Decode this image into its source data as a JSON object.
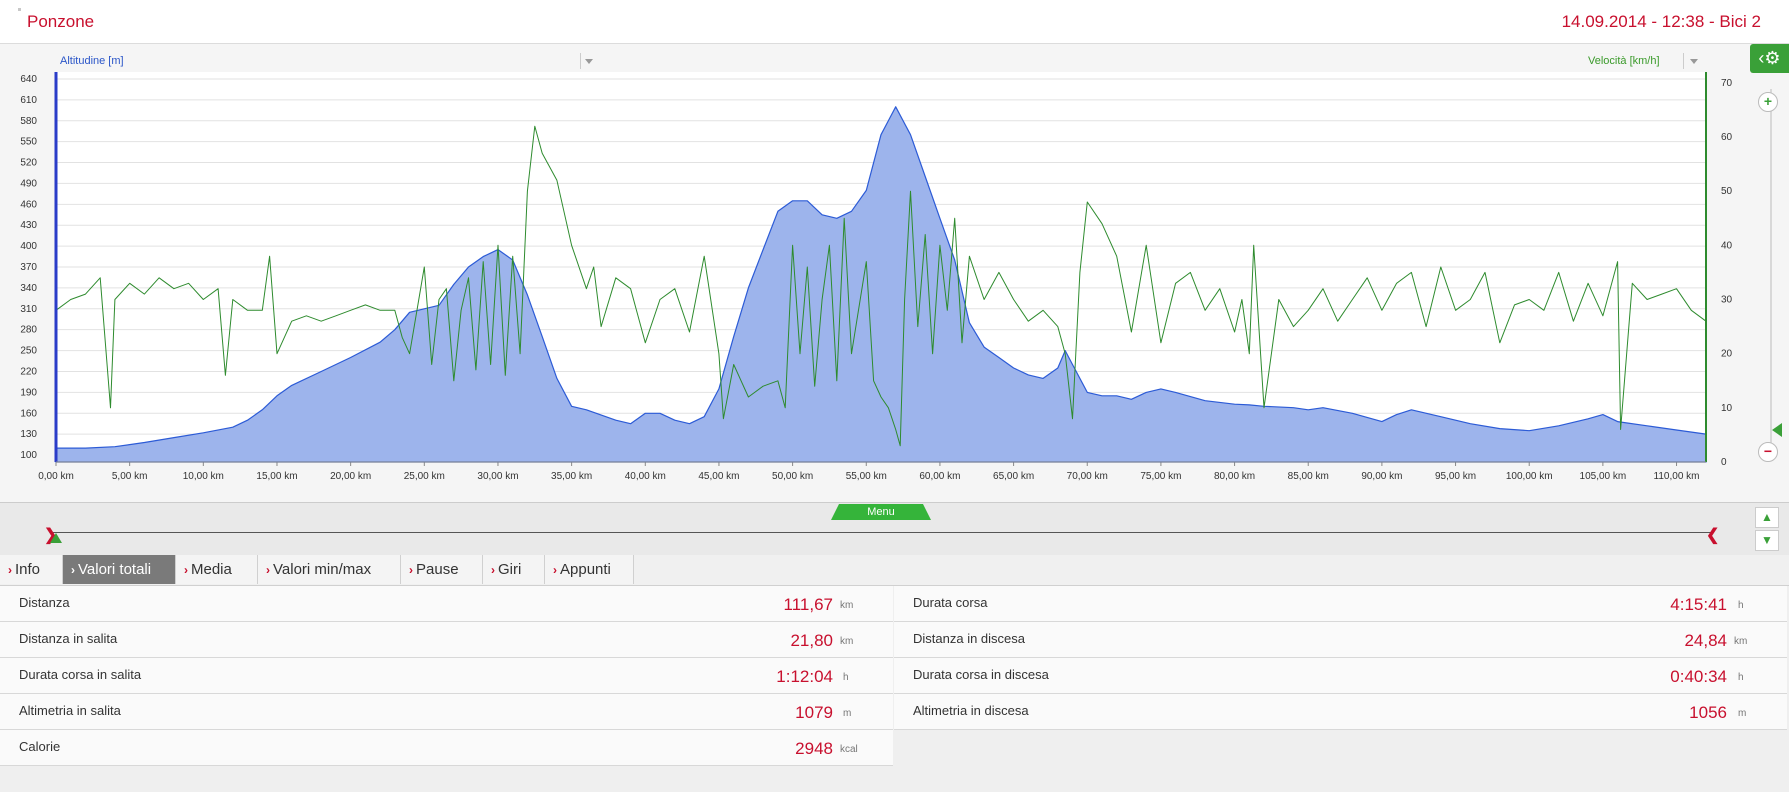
{
  "header": {
    "title": "Ponzone",
    "meta": "14.09.2014 - 12:38 - Bici 2"
  },
  "chart": {
    "left_axis_label": "Altitudine [m]",
    "right_axis_label": "Velocità [km/h]",
    "colors": {
      "altitude_fill": "#9db4ec",
      "altitude_line": "#2c5bd6",
      "speed_line": "#2e8b2e"
    }
  },
  "chart_data": {
    "type": "area",
    "xlabel": "",
    "ylabel": "Altitudine [m]",
    "y2label": "Velocità [km/h]",
    "xlim": [
      0,
      112
    ],
    "ylim": [
      90,
      650
    ],
    "y2lim": [
      0,
      72
    ],
    "x_ticks": [
      "0,00 km",
      "5,00 km",
      "10,00 km",
      "15,00 km",
      "20,00 km",
      "25,00 km",
      "30,00 km",
      "35,00 km",
      "40,00 km",
      "45,00 km",
      "50,00 km",
      "55,00 km",
      "60,00 km",
      "65,00 km",
      "70,00 km",
      "75,00 km",
      "80,00 km",
      "85,00 km",
      "90,00 km",
      "95,00 km",
      "100,00 km",
      "105,00 km",
      "110,00 km"
    ],
    "y_ticks": [
      640,
      610,
      580,
      550,
      520,
      490,
      460,
      430,
      400,
      370,
      340,
      310,
      280,
      250,
      220,
      190,
      160,
      130,
      100
    ],
    "y2_ticks": [
      70,
      60,
      50,
      40,
      30,
      20,
      10,
      0
    ],
    "grid": true,
    "series": [
      {
        "name": "Altitudine [m]",
        "axis": "left",
        "x": [
          0,
          2,
          4,
          6,
          8,
          10,
          12,
          13,
          14,
          15,
          16,
          18,
          20,
          22,
          23,
          24,
          25,
          26,
          27,
          28,
          29,
          30,
          31,
          32,
          33,
          34,
          35,
          36,
          38,
          39,
          40,
          41,
          42,
          43,
          44,
          45,
          46,
          47,
          48,
          49,
          50,
          51,
          52,
          53,
          54,
          55,
          56,
          57,
          58,
          59,
          60,
          61,
          62,
          63,
          64,
          65,
          66,
          67,
          68,
          68.5,
          69,
          70,
          71,
          72,
          73,
          74,
          75,
          76,
          78,
          80,
          81,
          82,
          84,
          85,
          86,
          88,
          90,
          91,
          92,
          94,
          96,
          98,
          100,
          102,
          104,
          105,
          106,
          108,
          110,
          112
        ],
        "y": [
          110,
          110,
          112,
          118,
          125,
          132,
          140,
          150,
          165,
          185,
          200,
          220,
          240,
          262,
          280,
          305,
          310,
          315,
          345,
          370,
          385,
          395,
          380,
          330,
          270,
          210,
          170,
          165,
          150,
          145,
          160,
          160,
          150,
          145,
          155,
          195,
          270,
          340,
          395,
          450,
          465,
          465,
          445,
          440,
          450,
          480,
          560,
          600,
          560,
          500,
          440,
          380,
          290,
          255,
          240,
          225,
          215,
          210,
          225,
          250,
          230,
          190,
          185,
          185,
          180,
          190,
          195,
          190,
          178,
          173,
          172,
          170,
          168,
          165,
          168,
          160,
          148,
          158,
          165,
          155,
          145,
          138,
          135,
          142,
          152,
          158,
          148,
          142,
          136,
          130
        ]
      },
      {
        "name": "Velocità [km/h]",
        "axis": "right",
        "x": [
          0,
          1,
          2,
          3,
          3.7,
          4,
          5,
          6,
          7,
          8,
          9,
          10,
          11,
          11.5,
          12,
          13,
          14,
          14.5,
          15,
          16,
          17,
          18,
          19,
          20,
          21,
          22,
          23,
          23.5,
          24,
          25,
          25.5,
          26,
          26.5,
          27,
          27.5,
          28,
          28.5,
          29,
          29.5,
          30,
          30.5,
          31,
          31.5,
          32,
          32.5,
          33,
          34,
          35,
          36,
          36.5,
          37,
          38,
          39,
          40,
          41,
          42,
          43,
          44,
          45,
          45.3,
          46,
          47,
          48,
          49,
          49.5,
          50,
          50.5,
          51,
          51.5,
          52,
          52.5,
          53,
          53.5,
          54,
          55,
          55.5,
          56,
          56.5,
          57,
          57.3,
          57.6,
          58,
          58.5,
          59,
          59.5,
          60,
          60.5,
          61,
          61.5,
          62,
          63,
          64,
          65,
          66,
          67,
          68,
          68.5,
          69,
          69.5,
          70,
          71,
          72,
          73,
          74,
          75,
          76,
          77,
          78,
          79,
          80,
          80.5,
          81,
          81.3,
          82,
          83,
          84,
          85,
          86,
          87,
          88,
          89,
          90,
          91,
          92,
          93,
          94,
          95,
          96,
          97,
          98,
          99,
          100,
          101,
          102,
          103,
          104,
          105,
          106,
          106.2,
          107,
          108,
          109,
          110,
          111,
          112
        ],
        "y": [
          28,
          30,
          31,
          34,
          10,
          30,
          33,
          31,
          34,
          32,
          33,
          30,
          32,
          16,
          30,
          28,
          28,
          38,
          20,
          26,
          27,
          26,
          27,
          28,
          29,
          28,
          28,
          23,
          20,
          36,
          18,
          30,
          32,
          15,
          28,
          34,
          17,
          37,
          18,
          40,
          16,
          38,
          20,
          50,
          62,
          57,
          52,
          40,
          32,
          36,
          25,
          34,
          32,
          22,
          30,
          32,
          24,
          38,
          20,
          8,
          18,
          12,
          14,
          15,
          10,
          40,
          20,
          36,
          14,
          30,
          40,
          15,
          45,
          20,
          37,
          15,
          12,
          10,
          6,
          3,
          30,
          50,
          25,
          42,
          20,
          40,
          28,
          45,
          22,
          38,
          30,
          35,
          30,
          26,
          28,
          25,
          20,
          8,
          35,
          48,
          44,
          38,
          24,
          40,
          22,
          33,
          35,
          28,
          32,
          24,
          30,
          20,
          40,
          10,
          30,
          25,
          28,
          32,
          26,
          30,
          34,
          28,
          33,
          35,
          25,
          36,
          28,
          30,
          35,
          22,
          29,
          30,
          28,
          35,
          26,
          33,
          27,
          37,
          6,
          33,
          30,
          31,
          32,
          28,
          26
        ]
      }
    ]
  },
  "scrubber": {
    "menu_label": "Menu"
  },
  "tabs": [
    {
      "label": "Info"
    },
    {
      "label": "Valori totali",
      "active": true
    },
    {
      "label": "Media"
    },
    {
      "label": "Valori min/max"
    },
    {
      "label": "Pause"
    },
    {
      "label": "Giri"
    },
    {
      "label": "Appunti"
    }
  ],
  "stats": {
    "left": [
      {
        "key": "Distanza",
        "value": "111,67",
        "unit": "km"
      },
      {
        "key": "Distanza in salita",
        "value": "21,80",
        "unit": "km"
      },
      {
        "key": "Durata corsa in salita",
        "value": "1:12:04",
        "unit": "h"
      },
      {
        "key": "Altimetria in salita",
        "value": "1079",
        "unit": "m"
      },
      {
        "key": "Calorie",
        "value": "2948",
        "unit": "kcal"
      }
    ],
    "right": [
      {
        "key": "Durata corsa",
        "value": "4:15:41",
        "unit": "h"
      },
      {
        "key": "Distanza in discesa",
        "value": "24,84",
        "unit": "km"
      },
      {
        "key": "Durata corsa in discesa",
        "value": "0:40:34",
        "unit": "h"
      },
      {
        "key": "Altimetria in discesa",
        "value": "1056",
        "unit": "m"
      }
    ]
  }
}
